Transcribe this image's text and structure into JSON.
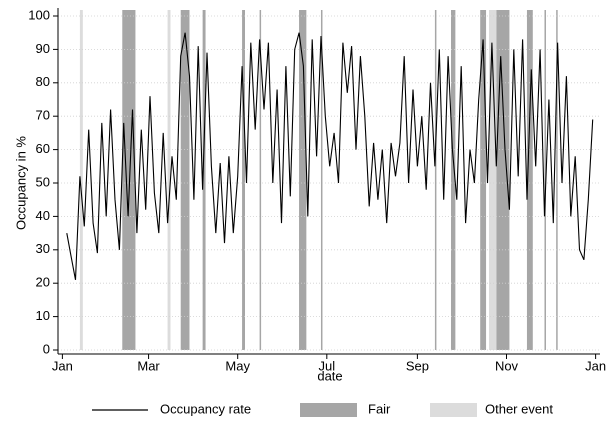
{
  "chart_data": {
    "type": "line",
    "y_label": "Occupancy in %",
    "x_label": "date",
    "x": [
      3,
      6,
      9,
      12,
      15,
      18,
      21,
      24,
      27,
      30,
      33,
      36,
      39,
      42,
      45,
      48,
      51,
      54,
      57,
      60,
      63,
      66,
      69,
      72,
      75,
      78,
      81,
      84,
      87,
      90,
      93,
      96,
      99,
      102,
      105,
      108,
      111,
      114,
      117,
      120,
      123,
      126,
      129,
      132,
      135,
      138,
      141,
      144,
      147,
      150,
      153,
      156,
      159,
      162,
      165,
      168,
      171,
      174,
      177,
      180,
      183,
      186,
      189,
      192,
      195,
      198,
      201,
      204,
      207,
      210,
      213,
      216,
      219,
      222,
      225,
      228,
      231,
      234,
      237,
      240,
      243,
      246,
      249,
      252,
      255,
      258,
      261,
      264,
      267,
      270,
      273,
      276,
      279,
      282,
      285,
      288,
      291,
      294,
      297,
      300,
      303,
      306,
      309,
      312,
      315,
      318,
      321,
      324,
      327,
      330,
      333,
      336,
      339,
      342,
      345,
      348,
      351,
      354,
      357,
      360,
      363
    ],
    "series": [
      {
        "name": "Occupancy rate",
        "color": "#000000",
        "values": [
          35,
          28,
          21,
          52,
          37,
          66,
          38,
          29,
          68,
          40,
          72,
          45,
          30,
          68,
          40,
          72,
          35,
          66,
          42,
          76,
          47,
          35,
          65,
          38,
          58,
          45,
          88,
          95,
          82,
          45,
          91,
          48,
          89,
          55,
          35,
          56,
          32,
          58,
          35,
          52,
          85,
          50,
          92,
          66,
          93,
          72,
          92,
          50,
          78,
          38,
          85,
          46,
          90,
          95,
          85,
          40,
          93,
          58,
          94,
          70,
          55,
          65,
          50,
          92,
          77,
          91,
          60,
          88,
          70,
          43,
          62,
          45,
          60,
          38,
          62,
          52,
          62,
          88,
          50,
          78,
          55,
          70,
          48,
          80,
          55,
          90,
          45,
          88,
          60,
          45,
          85,
          38,
          60,
          50,
          75,
          93,
          50,
          92,
          55,
          88,
          60,
          42,
          90,
          52,
          93,
          45,
          84,
          55,
          90,
          40,
          75,
          38,
          92,
          50,
          82,
          40,
          58,
          30,
          27,
          45,
          69
        ]
      }
    ],
    "bands": [
      {
        "name": "Fair",
        "color": "#a6a6a6",
        "ranges": [
          [
            41,
            50
          ],
          [
            81,
            87
          ],
          [
            96,
            98
          ],
          [
            123,
            125
          ],
          [
            135,
            136
          ],
          [
            162,
            167
          ],
          [
            177,
            178
          ],
          [
            255,
            256
          ],
          [
            266,
            269
          ],
          [
            286,
            290
          ],
          [
            297,
            306
          ],
          [
            318,
            322
          ],
          [
            330,
            331
          ],
          [
            338,
            339
          ]
        ]
      },
      {
        "name": "Other event",
        "color": "#dcdcdc",
        "ranges": [
          [
            12,
            14
          ],
          [
            72,
            74
          ],
          [
            292,
            297
          ]
        ]
      }
    ],
    "xlim": [
      -3,
      368
    ],
    "xticks": [
      {
        "value": 0,
        "label": "Jan"
      },
      {
        "value": 59,
        "label": "Mar"
      },
      {
        "value": 120,
        "label": "May"
      },
      {
        "value": 181,
        "label": "Jul"
      },
      {
        "value": 243,
        "label": "Sep"
      },
      {
        "value": 304,
        "label": "Nov"
      },
      {
        "value": 365,
        "label": "Jan"
      }
    ],
    "ylim": [
      0,
      100
    ],
    "yticks": [
      0,
      10,
      20,
      30,
      40,
      50,
      60,
      70,
      80,
      90,
      100
    ],
    "grid": true
  }
}
